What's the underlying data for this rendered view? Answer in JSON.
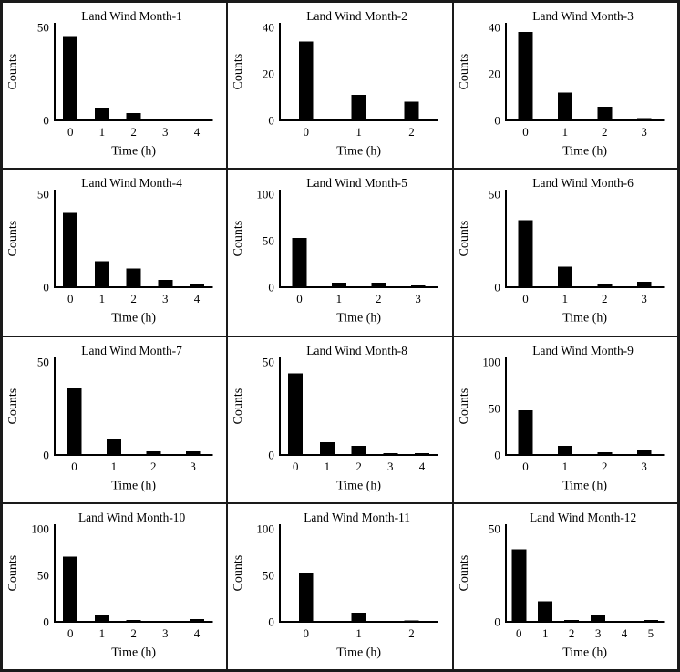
{
  "style": {
    "background": "#ffffff",
    "bar_color": "#000000",
    "axis_color": "#000000",
    "text_color": "#000000",
    "grid_border_color": "#1a1a1a"
  },
  "chart_data": [
    {
      "type": "bar",
      "title": "Land Wind Month-1",
      "xlabel": "Time (h)",
      "ylabel": "Counts",
      "categories": [
        "0",
        "1",
        "2",
        "3",
        "4"
      ],
      "values": [
        45,
        7,
        4,
        1,
        1
      ],
      "yticks": [
        0,
        50
      ],
      "ylim": [
        0,
        52
      ],
      "grid": false
    },
    {
      "type": "bar",
      "title": "Land Wind Month-2",
      "xlabel": "Time (h)",
      "ylabel": "Counts",
      "categories": [
        "0",
        "1",
        "2"
      ],
      "values": [
        34,
        11,
        8
      ],
      "yticks": [
        0,
        20,
        40
      ],
      "ylim": [
        0,
        42
      ],
      "grid": false
    },
    {
      "type": "bar",
      "title": "Land Wind Month-3",
      "xlabel": "Time (h)",
      "ylabel": "Counts",
      "categories": [
        "0",
        "1",
        "2",
        "3"
      ],
      "values": [
        38,
        12,
        6,
        1
      ],
      "yticks": [
        0,
        20,
        40
      ],
      "ylim": [
        0,
        42
      ],
      "grid": false
    },
    {
      "type": "bar",
      "title": "Land Wind Month-4",
      "xlabel": "Time (h)",
      "ylabel": "Counts",
      "categories": [
        "0",
        "1",
        "2",
        "3",
        "4"
      ],
      "values": [
        40,
        14,
        10,
        4,
        2
      ],
      "yticks": [
        0,
        50
      ],
      "ylim": [
        0,
        52
      ],
      "grid": false
    },
    {
      "type": "bar",
      "title": "Land Wind Month-5",
      "xlabel": "Time (h)",
      "ylabel": "Counts",
      "categories": [
        "0",
        "1",
        "2",
        "3"
      ],
      "values": [
        53,
        5,
        5,
        2
      ],
      "yticks": [
        0,
        50,
        100
      ],
      "ylim": [
        0,
        105
      ],
      "grid": false
    },
    {
      "type": "bar",
      "title": "Land Wind Month-6",
      "xlabel": "Time (h)",
      "ylabel": "Counts",
      "categories": [
        "0",
        "1",
        "2",
        "3"
      ],
      "values": [
        36,
        11,
        2,
        3
      ],
      "yticks": [
        0,
        50
      ],
      "ylim": [
        0,
        52
      ],
      "grid": false
    },
    {
      "type": "bar",
      "title": "Land Wind Month-7",
      "xlabel": "Time (h)",
      "ylabel": "Counts",
      "categories": [
        "0",
        "1",
        "2",
        "3"
      ],
      "values": [
        36,
        9,
        2,
        2
      ],
      "yticks": [
        0,
        50
      ],
      "ylim": [
        0,
        52
      ],
      "grid": false
    },
    {
      "type": "bar",
      "title": "Land Wind Month-8",
      "xlabel": "Time (h)",
      "ylabel": "Counts",
      "categories": [
        "0",
        "1",
        "2",
        "3",
        "4"
      ],
      "values": [
        44,
        7,
        5,
        1,
        1
      ],
      "yticks": [
        0,
        50
      ],
      "ylim": [
        0,
        52
      ],
      "grid": false
    },
    {
      "type": "bar",
      "title": "Land Wind Month-9",
      "xlabel": "Time (h)",
      "ylabel": "Counts",
      "categories": [
        "0",
        "1",
        "2",
        "3"
      ],
      "values": [
        48,
        10,
        3,
        5
      ],
      "yticks": [
        0,
        50,
        100
      ],
      "ylim": [
        0,
        105
      ],
      "grid": false
    },
    {
      "type": "bar",
      "title": "Land Wind Month-10",
      "xlabel": "Time (h)",
      "ylabel": "Counts",
      "categories": [
        "0",
        "1",
        "2",
        "3",
        "4"
      ],
      "values": [
        70,
        8,
        2,
        0,
        3
      ],
      "yticks": [
        0,
        50,
        100
      ],
      "ylim": [
        0,
        105
      ],
      "grid": false
    },
    {
      "type": "bar",
      "title": "Land Wind Month-11",
      "xlabel": "Time (h)",
      "ylabel": "Counts",
      "categories": [
        "0",
        "1",
        "2"
      ],
      "values": [
        53,
        10,
        1
      ],
      "yticks": [
        0,
        50,
        100
      ],
      "ylim": [
        0,
        105
      ],
      "grid": false
    },
    {
      "type": "bar",
      "title": "Land Wind Month-12",
      "xlabel": "Time (h)",
      "ylabel": "Counts",
      "categories": [
        "0",
        "1",
        "2",
        "3",
        "4",
        "5"
      ],
      "values": [
        39,
        11,
        1,
        4,
        0,
        1
      ],
      "yticks": [
        0,
        50
      ],
      "ylim": [
        0,
        52
      ],
      "grid": false
    }
  ]
}
